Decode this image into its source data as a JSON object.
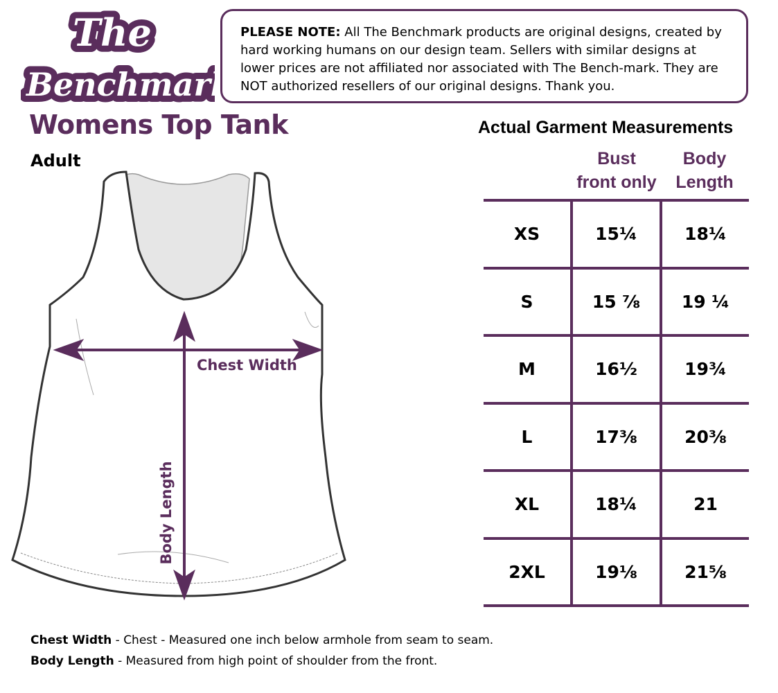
{
  "logo": {
    "text_line1": "The",
    "text_line2": "Benchmark"
  },
  "note": {
    "label": "PLEASE NOTE:",
    "text": "All The Benchmark products are original designs, created by hard working humans on our design team. Sellers with similar designs at lower prices are not affiliated nor associated with The Bench-mark. They are NOT authorized resellers of our original designs. Thank you."
  },
  "title": "Womens Top Tank",
  "subtitle": "Adult",
  "diagram": {
    "chest_label": "Chest Width",
    "length_label": "Body Length"
  },
  "table": {
    "title": "Actual Garment Measurements",
    "headers": [
      {
        "line1": "Bust",
        "line2": "front only"
      },
      {
        "line1": "Body",
        "line2": "Length"
      }
    ],
    "rows": [
      {
        "size": "XS",
        "bust": "15¼",
        "length": "18¼"
      },
      {
        "size": "S",
        "bust": "15 ⅞",
        "length": "19 ¼"
      },
      {
        "size": "M",
        "bust": "16½",
        "length": "19¾"
      },
      {
        "size": "L",
        "bust": "17⅜",
        "length": "20⅜"
      },
      {
        "size": "XL",
        "bust": "18¼",
        "length": "21"
      },
      {
        "size": "2XL",
        "bust": "19⅛",
        "length": "21⅝"
      }
    ]
  },
  "footnotes": [
    {
      "term": "Chest Width",
      "text": " - Chest - Measured one inch below armhole from seam to seam."
    },
    {
      "term": "Body Length",
      "text": " - Measured from high point of shoulder from the front."
    }
  ],
  "colors": {
    "brand": "#5a2d5c",
    "text": "#000000"
  }
}
